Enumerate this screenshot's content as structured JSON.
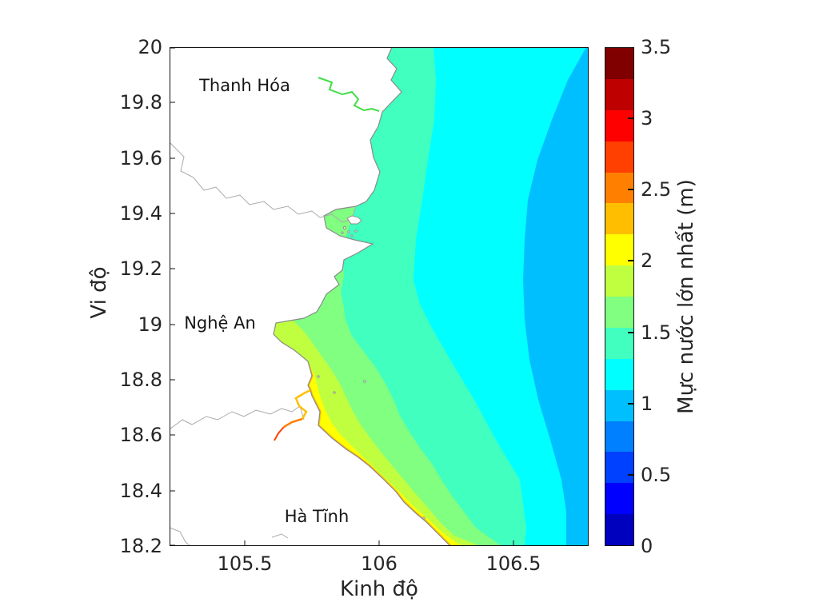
{
  "figure": {
    "background": "#ffffff"
  },
  "axes": {
    "x": {
      "label": "Kinh độ",
      "tick_labels": [
        "105.5",
        "106",
        "106.5"
      ],
      "range": [
        105.22,
        106.78
      ]
    },
    "y": {
      "label": "Vi độ",
      "tick_labels": [
        "20",
        "19.8",
        "19.6",
        "19.4",
        "19.2",
        "19",
        "18.8",
        "18.6",
        "18.4",
        "18.2"
      ],
      "range": [
        18.2,
        20
      ]
    }
  },
  "map": {
    "provinces": [
      {
        "name": "Thanh Hóa"
      },
      {
        "name": "Nghệ An"
      },
      {
        "name": "Hà Tĩnh"
      }
    ],
    "river_green_color": "#41DD44",
    "coastline_color": "#8a8a8a",
    "admin_border_color": "#aaaaaa",
    "land_color": "#ffffff"
  },
  "colorbar": {
    "label": "Mực nước lớn nhất (m)",
    "tick_labels": [
      "3.5",
      "3",
      "2.5",
      "2",
      "1.5",
      "1",
      "0.5",
      "0"
    ],
    "colors_bottom_to_top": [
      "#0000BF",
      "#0000FF",
      "#0040FF",
      "#0080FF",
      "#00BFFF",
      "#00FFFF",
      "#40FFBF",
      "#80FF80",
      "#BFFF40",
      "#FFFF00",
      "#FFBF00",
      "#FF8000",
      "#FF4000",
      "#FF0000",
      "#BF0000",
      "#800000"
    ]
  },
  "chart_data": {
    "type": "filled_contour_map",
    "title": "",
    "xlabel": "Kinh độ",
    "ylabel": "Vi độ",
    "xlim": [
      105.22,
      106.78
    ],
    "ylim": [
      18.2,
      20.0
    ],
    "xticks": [
      105.5,
      106,
      106.5
    ],
    "yticks": [
      20,
      19.8,
      19.6,
      19.4,
      19.2,
      19,
      18.8,
      18.6,
      18.4,
      18.2
    ],
    "grid": false,
    "colorbar": {
      "label": "Mực nước lớn nhất (m)",
      "min": 0,
      "max": 3.5,
      "tick_step": 0.5,
      "n_color_bands": 16,
      "colormap": "jet(16)"
    },
    "contour_interval_m": 0.25,
    "province_annotations": [
      {
        "name": "Thanh Hóa",
        "label_lon": 105.53,
        "label_lat": 19.86
      },
      {
        "name": "Nghệ An",
        "label_lon": 105.41,
        "label_lat": 19.0
      },
      {
        "name": "Hà Tĩnh",
        "label_lon": 105.77,
        "label_lat": 18.37
      }
    ],
    "water_level_bands_m": [
      {
        "range": [
          0.75,
          1.0
        ],
        "color": "#00BFFF",
        "where": "far offshore along eastern edge, widest near 19.2-19.6N and at SE corner"
      },
      {
        "range": [
          1.0,
          1.25
        ],
        "color": "#00FFFF",
        "where": "broad offshore band over east half of domain"
      },
      {
        "range": [
          1.25,
          1.5
        ],
        "color": "#40FFBF",
        "where": "nearshore Thanh Hóa (north) and mid-shelf toward SE"
      },
      {
        "range": [
          1.5,
          1.75
        ],
        "color": "#80FF80",
        "where": "coastal strip south of ~19.4N widening southward"
      },
      {
        "range": [
          1.75,
          2.0
        ],
        "color": "#BFFF40",
        "where": "coastal strip along Nghệ An and Hà Tĩnh"
      },
      {
        "range": [
          2.0,
          2.25
        ],
        "color": "#FFFF00",
        "where": "thin strip hugging Hà Tĩnh coast south of ~18.9N"
      },
      {
        "range": [
          2.25,
          2.5
        ],
        "color": "#FFBF00",
        "where": "shoreline slivers and estuary/river mouths south of 18.9N"
      }
    ]
  }
}
